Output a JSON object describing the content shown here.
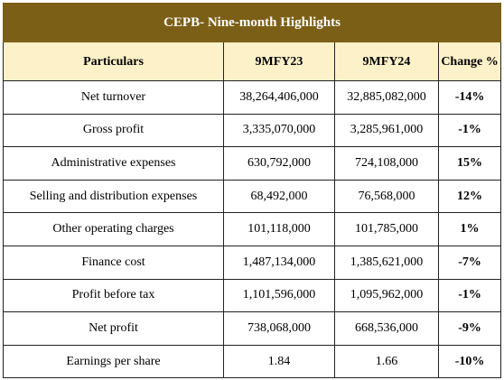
{
  "table": {
    "title": "CEPB- Nine-month Highlights",
    "header": [
      "Particulars",
      "9MFY23",
      "9MFY24",
      "Change %"
    ],
    "rows": [
      [
        "Net turnover",
        "38,264,406,000",
        "32,885,082,000",
        "-14%"
      ],
      [
        "Gross profit",
        "3,335,070,000",
        "3,285,961,000",
        "-1%"
      ],
      [
        "Administrative expenses",
        "630,792,000",
        "724,108,000",
        "15%"
      ],
      [
        "Selling and distribution expenses",
        "68,492,000",
        "76,568,000",
        "12%"
      ],
      [
        "Other operating charges",
        "101,118,000",
        "101,785,000",
        "1%"
      ],
      [
        "Finance cost",
        "1,487,134,000",
        "1,385,621,000",
        "-7%"
      ],
      [
        "Profit before tax",
        "1,101,596,000",
        "1,095,962,000",
        "-1%"
      ],
      [
        "Net profit",
        "738,068,000",
        "668,536,000",
        "-9%"
      ],
      [
        "Earnings per share",
        "1.84",
        "1.66",
        "-10%"
      ]
    ]
  }
}
